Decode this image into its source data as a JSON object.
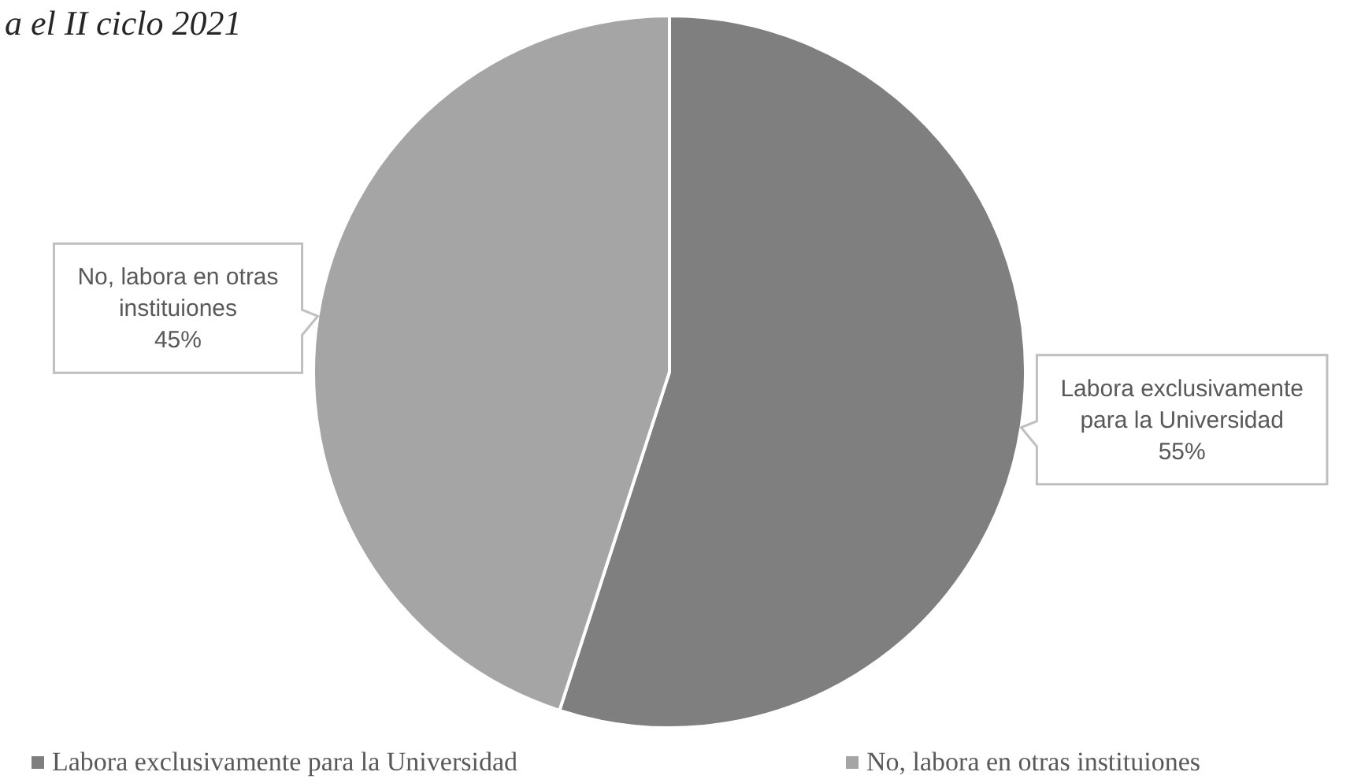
{
  "chart_data": {
    "type": "pie",
    "title": "a el II ciclo 2021",
    "categories": [
      "Labora exclusivamente para la Universidad",
      "No, labora en otras instituiones"
    ],
    "values": [
      55,
      45
    ],
    "colors": [
      "#7f7f7f",
      "#a5a5a5"
    ],
    "value_labels": [
      "55%",
      "45%"
    ],
    "legend": "bottom"
  }
}
